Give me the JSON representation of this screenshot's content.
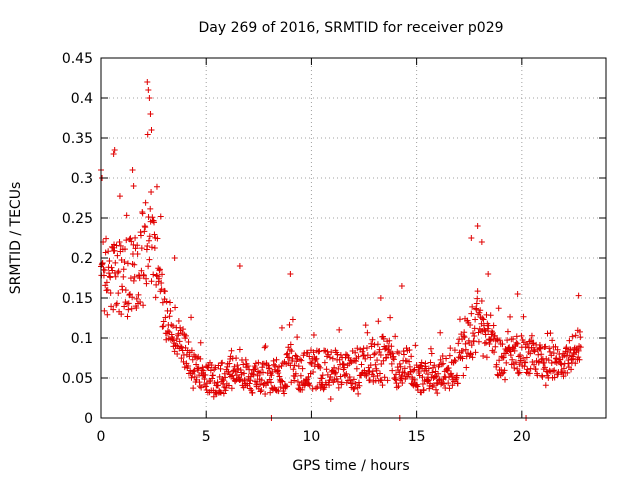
{
  "chart_data": {
    "type": "scatter",
    "title": "Day 269 of 2016, SRMTID for receiver p029",
    "xlabel": "GPS time / hours",
    "ylabel": "SRMTID / TECUs",
    "xlim": [
      0,
      24
    ],
    "ylim": [
      0,
      0.45
    ],
    "xticks": [
      0,
      5,
      10,
      15,
      20
    ],
    "yticks": [
      0,
      0.05,
      0.1,
      0.15,
      0.2,
      0.25,
      0.3,
      0.35,
      0.4,
      0.45
    ],
    "xtick_labels": [
      "0",
      "5",
      "10",
      "15",
      "20"
    ],
    "ytick_labels": [
      "0",
      "0.05",
      "0.1",
      "0.15",
      "0.2",
      "0.25",
      "0.3",
      "0.35",
      "0.4",
      "0.45"
    ],
    "grid": true,
    "marker": "+",
    "marker_color": "#e00000",
    "series": [
      {
        "name": "SRMTID",
        "envelope": {
          "x": [
            0.0,
            0.5,
            1.0,
            1.5,
            2.0,
            2.3,
            2.6,
            3.0,
            3.5,
            4.0,
            4.5,
            5.0,
            6.0,
            6.5,
            7.0,
            8.0,
            9.0,
            10.0,
            11.0,
            12.0,
            13.0,
            13.5,
            14.0,
            14.5,
            15.0,
            16.0,
            17.0,
            17.5,
            18.0,
            18.5,
            19.0,
            20.0,
            21.0,
            22.0,
            22.8
          ],
          "center": [
            0.17,
            0.18,
            0.17,
            0.18,
            0.2,
            0.24,
            0.2,
            0.13,
            0.11,
            0.08,
            0.06,
            0.05,
            0.05,
            0.07,
            0.05,
            0.05,
            0.06,
            0.06,
            0.06,
            0.06,
            0.07,
            0.08,
            0.06,
            0.07,
            0.05,
            0.05,
            0.07,
            0.1,
            0.12,
            0.1,
            0.07,
            0.08,
            0.07,
            0.07,
            0.09
          ],
          "spread": [
            0.05,
            0.05,
            0.05,
            0.05,
            0.06,
            0.06,
            0.05,
            0.03,
            0.03,
            0.025,
            0.02,
            0.02,
            0.02,
            0.025,
            0.02,
            0.02,
            0.025,
            0.025,
            0.025,
            0.025,
            0.03,
            0.03,
            0.025,
            0.025,
            0.02,
            0.02,
            0.03,
            0.04,
            0.04,
            0.03,
            0.025,
            0.025,
            0.02,
            0.02,
            0.025
          ]
        },
        "peaks": [
          {
            "x": 0.0,
            "y": 0.31
          },
          {
            "x": 0.05,
            "y": 0.3
          },
          {
            "x": 0.6,
            "y": 0.33
          },
          {
            "x": 0.65,
            "y": 0.335
          },
          {
            "x": 1.5,
            "y": 0.31
          },
          {
            "x": 1.55,
            "y": 0.29
          },
          {
            "x": 2.2,
            "y": 0.42
          },
          {
            "x": 2.25,
            "y": 0.41
          },
          {
            "x": 2.3,
            "y": 0.4
          },
          {
            "x": 2.35,
            "y": 0.38
          },
          {
            "x": 2.4,
            "y": 0.36
          },
          {
            "x": 3.5,
            "y": 0.2
          },
          {
            "x": 6.6,
            "y": 0.19
          },
          {
            "x": 9.0,
            "y": 0.18
          },
          {
            "x": 13.3,
            "y": 0.15
          },
          {
            "x": 14.3,
            "y": 0.165
          },
          {
            "x": 17.6,
            "y": 0.225
          },
          {
            "x": 17.9,
            "y": 0.24
          },
          {
            "x": 18.1,
            "y": 0.22
          },
          {
            "x": 18.4,
            "y": 0.18
          },
          {
            "x": 19.8,
            "y": 0.155
          },
          {
            "x": 22.7,
            "y": 0.153
          }
        ],
        "near_zero": [
          {
            "x": 8.1,
            "y": 0.0
          },
          {
            "x": 14.2,
            "y": 0.0
          },
          {
            "x": 20.2,
            "y": 0.0
          }
        ],
        "coverage": {
          "start": 0.0,
          "end": 22.8,
          "step": 0.02
        }
      }
    ]
  }
}
